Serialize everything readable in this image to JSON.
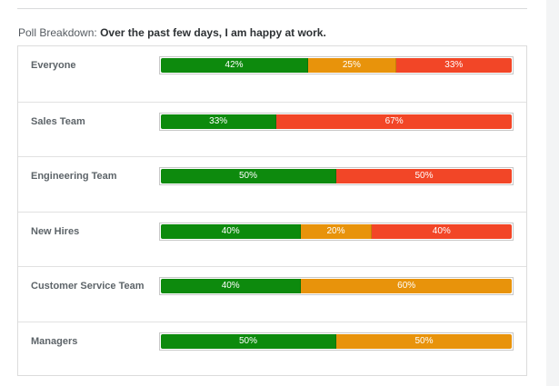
{
  "header": {
    "prefix": "Poll Breakdown:",
    "question": "Over the past few days, I am happy at work."
  },
  "colors": {
    "positive": "#0d8a0d",
    "neutral": "#e8930b",
    "negative": "#f24627"
  },
  "rows": [
    {
      "label": "Everyone",
      "segments": [
        {
          "type": "positive",
          "value": 42,
          "text": "42%"
        },
        {
          "type": "neutral",
          "value": 25,
          "text": "25%"
        },
        {
          "type": "negative",
          "value": 33,
          "text": "33%"
        }
      ]
    },
    {
      "label": "Sales Team",
      "segments": [
        {
          "type": "positive",
          "value": 33,
          "text": "33%"
        },
        {
          "type": "negative",
          "value": 67,
          "text": "67%"
        }
      ]
    },
    {
      "label": "Engineering Team",
      "segments": [
        {
          "type": "positive",
          "value": 50,
          "text": "50%"
        },
        {
          "type": "negative",
          "value": 50,
          "text": "50%"
        }
      ]
    },
    {
      "label": "New Hires",
      "segments": [
        {
          "type": "positive",
          "value": 40,
          "text": "40%"
        },
        {
          "type": "neutral",
          "value": 20,
          "text": "20%"
        },
        {
          "type": "negative",
          "value": 40,
          "text": "40%"
        }
      ]
    },
    {
      "label": "Customer Service Team",
      "segments": [
        {
          "type": "positive",
          "value": 40,
          "text": "40%"
        },
        {
          "type": "neutral",
          "value": 60,
          "text": "60%"
        }
      ]
    },
    {
      "label": "Managers",
      "segments": [
        {
          "type": "positive",
          "value": 50,
          "text": "50%"
        },
        {
          "type": "neutral",
          "value": 50,
          "text": "50%"
        }
      ]
    }
  ]
}
